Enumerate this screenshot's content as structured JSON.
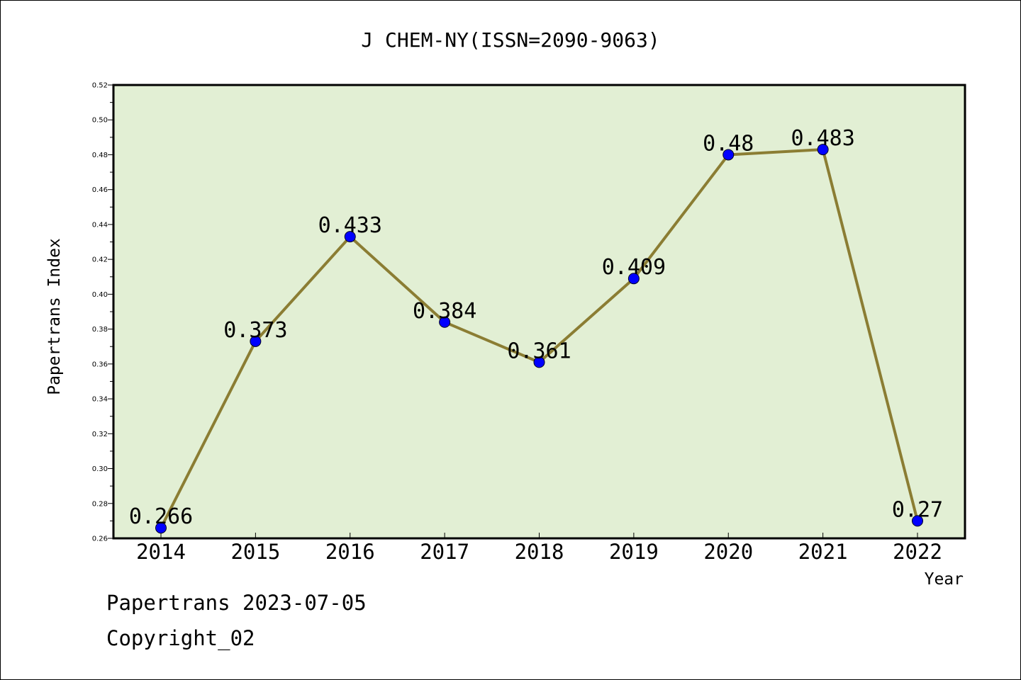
{
  "chart_data": {
    "type": "line",
    "title": "J CHEM-NY(ISSN=2090-9063)",
    "xlabel": "Year",
    "ylabel": "Papertrans Index",
    "categories": [
      "2014",
      "2015",
      "2016",
      "2017",
      "2018",
      "2019",
      "2020",
      "2021",
      "2022"
    ],
    "series": [
      {
        "values": [
          0.266,
          0.373,
          0.433,
          0.384,
          0.361,
          0.409,
          0.48,
          0.483,
          0.27
        ]
      }
    ],
    "data_labels": [
      "0.266",
      "0.373",
      "0.433",
      "0.384",
      "0.361",
      "0.409",
      "0.48",
      "0.483",
      "0.27"
    ],
    "ylim": [
      0.26,
      0.52
    ],
    "yticks": [
      "0.26",
      "0.28",
      "0.30",
      "0.32",
      "0.34",
      "0.36",
      "0.38",
      "0.40",
      "0.42",
      "0.44",
      "0.46",
      "0.48",
      "0.50",
      "0.52"
    ],
    "grid": false,
    "legend": "none",
    "colors": {
      "plot_background": "#e2efd4",
      "line": "#8b7d33",
      "marker": "#0000ff"
    }
  },
  "footer": {
    "line1": "Papertrans 2023-07-05",
    "line2": "Copyright_02"
  }
}
